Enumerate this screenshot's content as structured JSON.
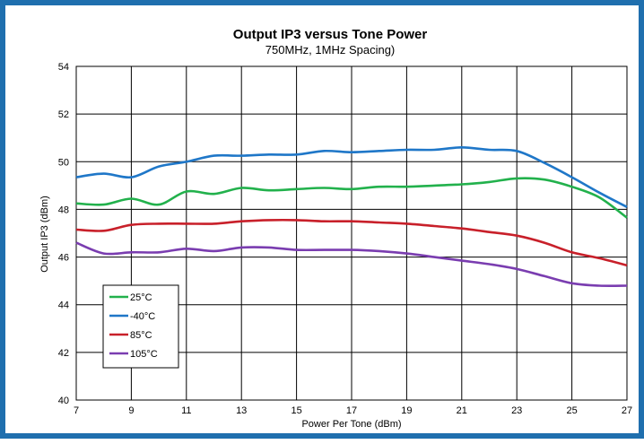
{
  "colors": {
    "frame": "#1f6fae",
    "grid": "#000000",
    "series": [
      "#22b14c",
      "#1f77c8",
      "#c8202a",
      "#7a3db0"
    ]
  },
  "chart_data": {
    "type": "line",
    "title": "Output IP3 versus Tone Power",
    "subtitle": "750MHz, 1MHz Spacing)",
    "xlabel": "Power Per Tone (dBm)",
    "ylabel": "Output IP3 (dBm)",
    "xlim": [
      7,
      27
    ],
    "ylim": [
      40,
      54
    ],
    "xticks": [
      7,
      9,
      11,
      13,
      15,
      17,
      19,
      21,
      23,
      25,
      27
    ],
    "yticks": [
      40,
      42,
      44,
      46,
      48,
      50,
      52,
      54
    ],
    "grid": true,
    "legend_position": "bottom-left",
    "series": [
      {
        "name": "25°C",
        "color": "#22b14c",
        "x": [
          7,
          8,
          9,
          10,
          11,
          12,
          13,
          14,
          15,
          16,
          17,
          18,
          19,
          20,
          21,
          22,
          23,
          24,
          25,
          26,
          27
        ],
        "y": [
          48.25,
          48.2,
          48.45,
          48.2,
          48.75,
          48.65,
          48.9,
          48.8,
          48.85,
          48.9,
          48.85,
          48.95,
          48.95,
          49.0,
          49.05,
          49.15,
          49.3,
          49.25,
          48.95,
          48.5,
          47.65
        ]
      },
      {
        "name": "-40°C",
        "color": "#1f77c8",
        "x": [
          7,
          8,
          9,
          10,
          11,
          12,
          13,
          14,
          15,
          16,
          17,
          18,
          19,
          20,
          21,
          22,
          23,
          24,
          25,
          26,
          27
        ],
        "y": [
          49.35,
          49.5,
          49.35,
          49.8,
          50.0,
          50.25,
          50.25,
          50.3,
          50.3,
          50.45,
          50.4,
          50.45,
          50.5,
          50.5,
          50.6,
          50.5,
          50.45,
          49.95,
          49.35,
          48.7,
          48.1
        ]
      },
      {
        "name": "85°C",
        "color": "#c8202a",
        "x": [
          7,
          8,
          9,
          10,
          11,
          12,
          13,
          14,
          15,
          16,
          17,
          18,
          19,
          20,
          21,
          22,
          23,
          24,
          25,
          26,
          27
        ],
        "y": [
          47.15,
          47.1,
          47.35,
          47.4,
          47.4,
          47.4,
          47.5,
          47.55,
          47.55,
          47.5,
          47.5,
          47.45,
          47.4,
          47.3,
          47.2,
          47.05,
          46.9,
          46.6,
          46.2,
          45.95,
          45.65
        ]
      },
      {
        "name": "105°C",
        "color": "#7a3db0",
        "x": [
          7,
          8,
          9,
          10,
          11,
          12,
          13,
          14,
          15,
          16,
          17,
          18,
          19,
          20,
          21,
          22,
          23,
          24,
          25,
          26,
          27
        ],
        "y": [
          46.6,
          46.15,
          46.2,
          46.2,
          46.35,
          46.25,
          46.4,
          46.4,
          46.3,
          46.3,
          46.3,
          46.25,
          46.15,
          46.0,
          45.85,
          45.7,
          45.5,
          45.2,
          44.9,
          44.8,
          44.8
        ]
      }
    ]
  }
}
